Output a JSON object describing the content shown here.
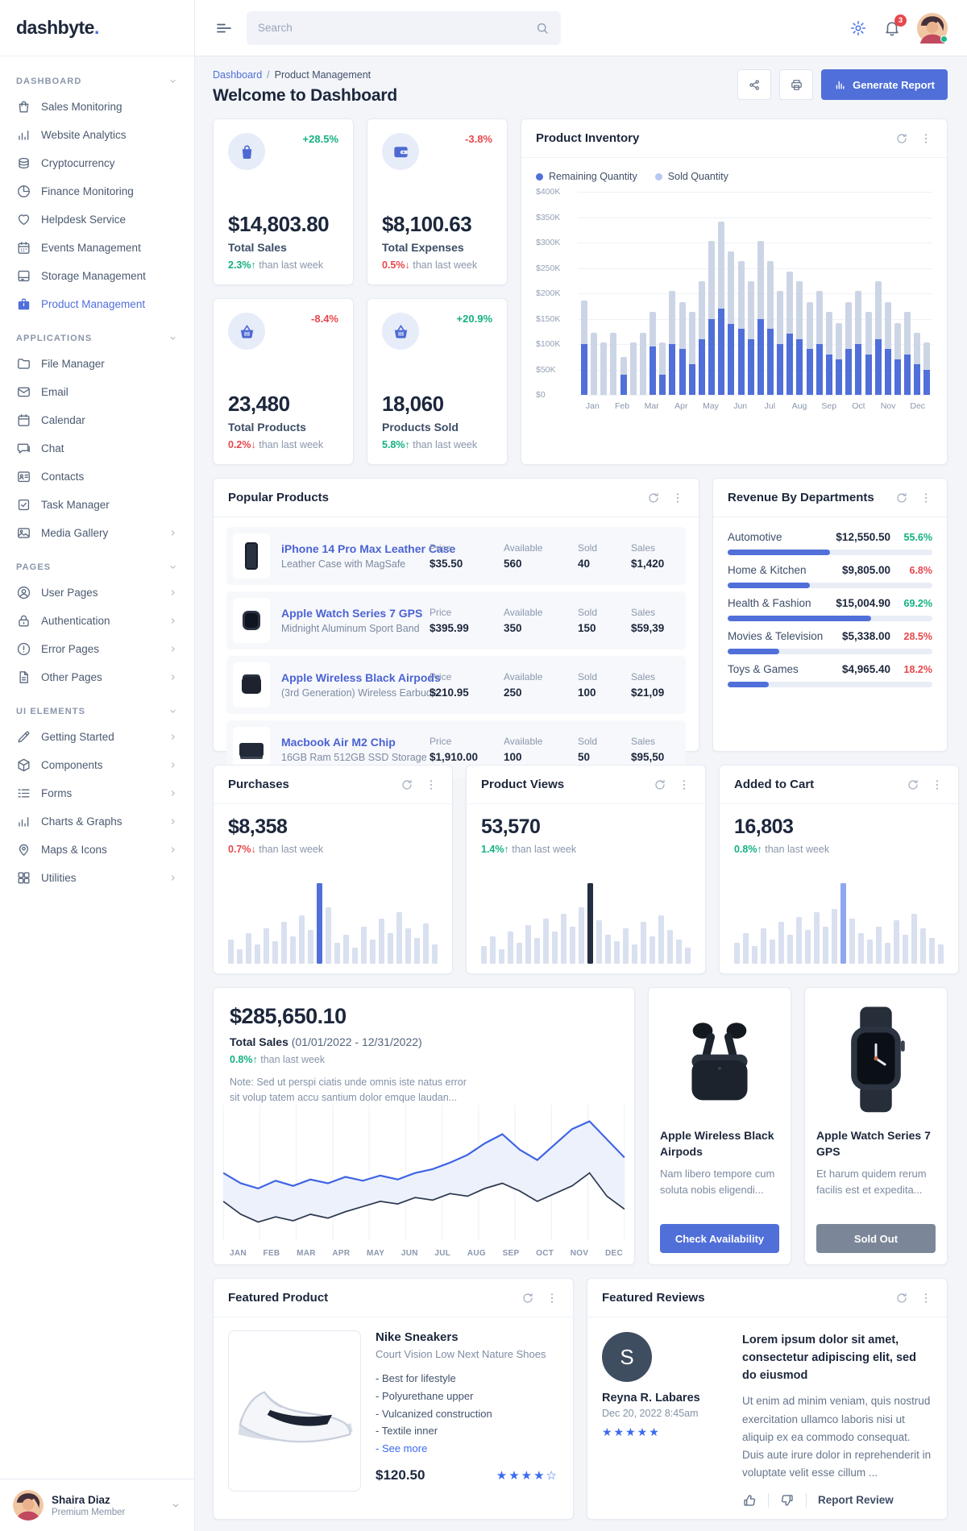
{
  "brand": {
    "name": "dashbyte",
    "dot": "."
  },
  "topbar": {
    "search_placeholder": "Search",
    "notification_count": "3"
  },
  "page": {
    "breadcrumb_home": "Dashboard",
    "breadcrumb_current": "Product Management",
    "title": "Welcome to Dashboard",
    "generate_report_label": "Generate Report"
  },
  "sidebar": {
    "sections": [
      {
        "label": "DASHBOARD",
        "items": [
          {
            "icon": "bag",
            "label": "Sales Monitoring"
          },
          {
            "icon": "chart",
            "label": "Website Analytics"
          },
          {
            "icon": "coins",
            "label": "Cryptocurrency"
          },
          {
            "icon": "pie",
            "label": "Finance Monitoring"
          },
          {
            "icon": "heart",
            "label": "Helpdesk Service"
          },
          {
            "icon": "calendar-star",
            "label": "Events Management"
          },
          {
            "icon": "archive",
            "label": "Storage Management"
          },
          {
            "icon": "briefcase",
            "label": "Product Management",
            "active": true
          }
        ]
      },
      {
        "label": "APPLICATIONS",
        "items": [
          {
            "icon": "folder",
            "label": "File Manager"
          },
          {
            "icon": "mail",
            "label": "Email"
          },
          {
            "icon": "calendar",
            "label": "Calendar"
          },
          {
            "icon": "chat",
            "label": "Chat"
          },
          {
            "icon": "id-card",
            "label": "Contacts"
          },
          {
            "icon": "task",
            "label": "Task Manager"
          },
          {
            "icon": "image",
            "label": "Media Gallery",
            "arrow": true
          }
        ]
      },
      {
        "label": "PAGES",
        "items": [
          {
            "icon": "user-circle",
            "label": "User Pages",
            "arrow": true
          },
          {
            "icon": "lock",
            "label": "Authentication",
            "arrow": true
          },
          {
            "icon": "alert",
            "label": "Error Pages",
            "arrow": true
          },
          {
            "icon": "file",
            "label": "Other Pages",
            "arrow": true
          }
        ]
      },
      {
        "label": "UI ELEMENTS",
        "items": [
          {
            "icon": "pen",
            "label": "Getting Started",
            "arrow": true
          },
          {
            "icon": "box",
            "label": "Components",
            "arrow": true
          },
          {
            "icon": "forms",
            "label": "Forms",
            "arrow": true
          },
          {
            "icon": "chart",
            "label": "Charts & Graphs",
            "arrow": true
          },
          {
            "icon": "map",
            "label": "Maps & Icons",
            "arrow": true
          },
          {
            "icon": "grid",
            "label": "Utilities",
            "arrow": true
          }
        ]
      }
    ],
    "user": {
      "name": "Shaira Diaz",
      "role": "Premium Member"
    }
  },
  "kpis": [
    {
      "icon": "kpi-bag",
      "delta": "+28.5%",
      "delta_tone": "g",
      "value": "$14,803.80",
      "label": "Total Sales",
      "change": "2.3%",
      "arrow": "up",
      "tone": "g",
      "suffix": "than last week"
    },
    {
      "icon": "kpi-wallet",
      "delta": "-3.8%",
      "delta_tone": "r",
      "value": "$8,100.63",
      "label": "Total Expenses",
      "change": "0.5%",
      "arrow": "down",
      "tone": "r",
      "suffix": "than last week"
    },
    {
      "icon": "kpi-basket",
      "delta": "-8.4%",
      "delta_tone": "r",
      "value": "23,480",
      "label": "Total Products",
      "change": "0.2%",
      "arrow": "down",
      "tone": "r",
      "suffix": "than last week"
    },
    {
      "icon": "kpi-basket",
      "delta": "+20.9%",
      "delta_tone": "g",
      "value": "18,060",
      "label": "Products Sold",
      "change": "5.8%",
      "arrow": "up",
      "tone": "g",
      "suffix": "than last week"
    }
  ],
  "inventory": {
    "title": "Product Inventory",
    "legend": [
      {
        "label": "Remaining Quantity",
        "color": "#506fd9"
      },
      {
        "label": "Sold Quantity",
        "color": "#b9c7f3"
      }
    ]
  },
  "popular": {
    "title": "Popular Products",
    "col_labels": {
      "price": "Price",
      "available": "Available",
      "sold": "Sold",
      "sales": "Sales"
    },
    "rows": [
      {
        "thumb": "iphone",
        "name": "iPhone 14 Pro Max Leather Case",
        "desc": "Leather Case with MagSafe",
        "price": "$35.50",
        "available": "560",
        "sold": "40",
        "sales": "$1,420"
      },
      {
        "thumb": "watch",
        "name": "Apple Watch Series 7 GPS",
        "desc": "Midnight Aluminum Sport Band",
        "price": "$395.99",
        "available": "350",
        "sold": "150",
        "sales": "$59,39"
      },
      {
        "thumb": "airpods",
        "name": "Apple Wireless Black Airpods",
        "desc": "(3rd Generation) Wireless Earbuds",
        "price": "$210.95",
        "available": "250",
        "sold": "100",
        "sales": "$21,09"
      },
      {
        "thumb": "mac",
        "name": "Macbook Air M2 Chip",
        "desc": "16GB Ram 512GB SSD Storage",
        "price": "$1,910.00",
        "available": "100",
        "sold": "50",
        "sales": "$95,50"
      }
    ]
  },
  "revenue": {
    "title": "Revenue By Departments",
    "rows": [
      {
        "name": "Automotive",
        "amount": "$12,550.50",
        "pct": "55.6%",
        "tone": "g",
        "bar": 50
      },
      {
        "name": "Home & Kitchen",
        "amount": "$9,805.00",
        "pct": "6.8%",
        "tone": "r",
        "bar": 40
      },
      {
        "name": "Health & Fashion",
        "amount": "$15,004.90",
        "pct": "69.2%",
        "tone": "g",
        "bar": 70
      },
      {
        "name": "Movies & Television",
        "amount": "$5,338.00",
        "pct": "28.5%",
        "tone": "r",
        "bar": 25
      },
      {
        "name": "Toys & Games",
        "amount": "$4,965.40",
        "pct": "18.2%",
        "tone": "r",
        "bar": 20
      }
    ]
  },
  "stats": [
    {
      "title": "Purchases",
      "value": "$8,358",
      "change": "0.7%",
      "arrow": "down",
      "tone": "r",
      "suffix": "than last week",
      "spike_color": "#506fd9"
    },
    {
      "title": "Product Views",
      "value": "53,570",
      "change": "1.4%",
      "arrow": "up",
      "tone": "g",
      "suffix": "than last week",
      "spike_color": "#232e42"
    },
    {
      "title": "Added to Cart",
      "value": "16,803",
      "change": "0.8%",
      "arrow": "up",
      "tone": "g",
      "suffix": "than last week",
      "spike_color": "#8fa7ee"
    }
  ],
  "sales_overview": {
    "value": "$285,650.10",
    "label": "Total Sales",
    "range": "(01/01/2022 - 12/31/2022)",
    "change": "0.8%",
    "arrow": "up",
    "tone": "g",
    "suffix": "than last week",
    "note": "Note: Sed ut perspi ciatis unde omnis iste natus error sit volup tatem accu santium dolor emque laudan..."
  },
  "promos": [
    {
      "image": "airpods",
      "title": "Apple Wireless Black Airpods",
      "text": "Nam libero tempore cum soluta nobis eligendi...",
      "button": "Check Availability",
      "style": "primary"
    },
    {
      "image": "watch",
      "title": "Apple Watch Series 7 GPS",
      "text": "Et harum quidem rerum facilis est et expedita...",
      "button": "Sold Out",
      "style": "secondary"
    }
  ],
  "featured_product": {
    "title": "Featured Product",
    "name": "Nike Sneakers",
    "subtitle": "Court Vision Low Next Nature Shoes",
    "bullets": [
      "- Best for lifestyle",
      "- Polyurethane upper",
      "- Vulcanized construction",
      "- Textile inner"
    ],
    "see_more": "- See more",
    "price": "$120.50",
    "rating": 4,
    "rating_max": 5
  },
  "featured_reviews": {
    "title": "Featured Reviews",
    "avatar_letter": "S",
    "reviewer": "Reyna R. Labares",
    "date": "Dec 20, 2022 8:45am",
    "rating": 5,
    "heading": "Lorem ipsum dolor sit amet, consectetur adipiscing elit, sed do eiusmod",
    "body": "Ut enim ad minim veniam, quis nostrud exercitation ullamco laboris nisi ut aliquip ex ea commodo consequat. Duis aute irure dolor in reprehenderit in voluptate velit esse cillum ...",
    "thumbs_up": "like",
    "thumbs_down": "dislike",
    "report": "Report Review"
  },
  "chart_data": [
    {
      "type": "bar",
      "name": "product-inventory",
      "title": "Product Inventory",
      "stacked": true,
      "ylabel": "USD",
      "ylim": [
        0,
        400000
      ],
      "y_ticks": [
        "$400K",
        "$350K",
        "$300K",
        "$250K",
        "$200K",
        "$150K",
        "$100K",
        "$50K",
        "$0"
      ],
      "categories": [
        "Jan",
        "Feb",
        "Mar",
        "Apr",
        "May",
        "Jun",
        "Jul",
        "Aug",
        "Sep",
        "Oct",
        "Nov",
        "Dec"
      ],
      "bars_per_month": 3,
      "series_note": "values in $K, [remaining, sold] per bar",
      "bars": [
        [
          100,
          85
        ],
        [
          0,
          122
        ],
        [
          0,
          103
        ],
        [
          0,
          122
        ],
        [
          40,
          35
        ],
        [
          0,
          103
        ],
        [
          0,
          122
        ],
        [
          95,
          68
        ],
        [
          40,
          63
        ],
        [
          100,
          104
        ],
        [
          90,
          93
        ],
        [
          60,
          103
        ],
        [
          110,
          114
        ],
        [
          150,
          153
        ],
        [
          170,
          172
        ],
        [
          140,
          143
        ],
        [
          130,
          133
        ],
        [
          110,
          114
        ],
        [
          150,
          153
        ],
        [
          130,
          133
        ],
        [
          100,
          104
        ],
        [
          120,
          123
        ],
        [
          110,
          114
        ],
        [
          90,
          93
        ],
        [
          100,
          104
        ],
        [
          80,
          83
        ],
        [
          70,
          72
        ],
        [
          90,
          93
        ],
        [
          100,
          104
        ],
        [
          80,
          83
        ],
        [
          110,
          114
        ],
        [
          90,
          93
        ],
        [
          70,
          72
        ],
        [
          80,
          83
        ],
        [
          60,
          62
        ],
        [
          50,
          53
        ]
      ]
    },
    {
      "type": "bar",
      "name": "purchases-mini",
      "spike_index": 10,
      "values": [
        30,
        18,
        38,
        24,
        44,
        28,
        52,
        34,
        60,
        42,
        100,
        70,
        26,
        36,
        20,
        46,
        30,
        56,
        38,
        64,
        44,
        32,
        50,
        24
      ]
    },
    {
      "type": "bar",
      "name": "product-views-mini",
      "spike_index": 12,
      "values": [
        22,
        34,
        18,
        40,
        26,
        48,
        32,
        56,
        40,
        62,
        46,
        70,
        100,
        54,
        36,
        28,
        44,
        24,
        52,
        34,
        60,
        42,
        30,
        20
      ]
    },
    {
      "type": "bar",
      "name": "added-to-cart-mini",
      "spike_index": 12,
      "values": [
        26,
        38,
        22,
        44,
        30,
        52,
        36,
        58,
        42,
        64,
        46,
        68,
        100,
        56,
        38,
        30,
        46,
        26,
        54,
        36,
        62,
        44,
        32,
        24
      ]
    },
    {
      "type": "line",
      "name": "total-sales-overview",
      "title": "Total Sales (01/01/2022 - 12/31/2022)",
      "x_labels": [
        "JAN",
        "FEB",
        "MAR",
        "APR",
        "MAY",
        "JUN",
        "JUL",
        "AUG",
        "SEP",
        "OCT",
        "NOV",
        "DEC"
      ],
      "series": [
        {
          "name": "upper",
          "color": "#3e63e5",
          "values": [
            52,
            44,
            40,
            46,
            42,
            47,
            44,
            49,
            46,
            50,
            47,
            52,
            55,
            60,
            66,
            75,
            82,
            70,
            62,
            74,
            86,
            92,
            78,
            64
          ]
        },
        {
          "name": "lower",
          "color": "#2e3a50",
          "values": [
            30,
            20,
            14,
            18,
            15,
            20,
            17,
            22,
            26,
            30,
            28,
            33,
            31,
            36,
            34,
            40,
            44,
            38,
            30,
            36,
            42,
            52,
            34,
            24
          ]
        }
      ]
    }
  ]
}
